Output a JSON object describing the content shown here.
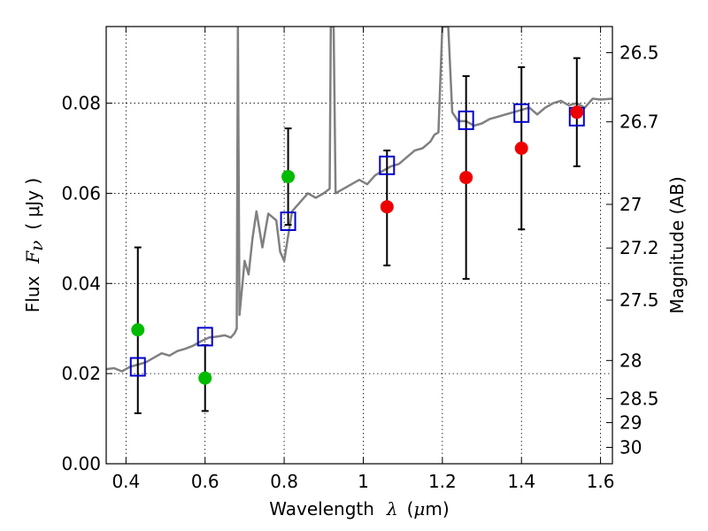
{
  "chart_data": {
    "type": "scatter",
    "title": "",
    "xlabel": {
      "prefix": "Wavelength",
      "symbol": "λ",
      "unit_open": "(",
      "unit_mu": "μ",
      "unit_rest": "m)"
    },
    "ylabel": {
      "prefix": "Flux",
      "symbol_main": "F",
      "symbol_sub": "ν",
      "unit": "( μJy )"
    },
    "y2label": "Magnitude (AB)",
    "xlim": [
      0.35,
      1.63
    ],
    "ylim": [
      0.0,
      0.097
    ],
    "x_ticks": [
      {
        "value": 0.4,
        "label": "0.4"
      },
      {
        "value": 0.6,
        "label": "0.6"
      },
      {
        "value": 0.8,
        "label": "0.8"
      },
      {
        "value": 1.0,
        "label": "1"
      },
      {
        "value": 1.2,
        "label": "1.2"
      },
      {
        "value": 1.4,
        "label": "1.4"
      },
      {
        "value": 1.6,
        "label": "1.6"
      }
    ],
    "y_ticks": [
      {
        "value": 0.0,
        "label": "0.00"
      },
      {
        "value": 0.02,
        "label": "0.02"
      },
      {
        "value": 0.04,
        "label": "0.04"
      },
      {
        "value": 0.06,
        "label": "0.06"
      },
      {
        "value": 0.08,
        "label": "0.08"
      }
    ],
    "mag_ticks": [
      {
        "value": 26.5,
        "label": "26.5"
      },
      {
        "value": 26.7,
        "label": "26.7"
      },
      {
        "value": 27.0,
        "label": "27"
      },
      {
        "value": 27.2,
        "label": "27.2"
      },
      {
        "value": 27.5,
        "label": "27.5"
      },
      {
        "value": 28.0,
        "label": "28"
      },
      {
        "value": 28.5,
        "label": "28.5"
      },
      {
        "value": 29.0,
        "label": "29"
      },
      {
        "value": 30.0,
        "label": "30"
      }
    ],
    "grid": true,
    "colors": {
      "spectrum": "#808080",
      "model": "#0000cc",
      "green": "#00bb00",
      "red": "#ee0000",
      "error": "#000000"
    },
    "spectrum": [
      [
        0.35,
        0.021
      ],
      [
        0.37,
        0.0212
      ],
      [
        0.39,
        0.0205
      ],
      [
        0.41,
        0.0215
      ],
      [
        0.43,
        0.022
      ],
      [
        0.45,
        0.0225
      ],
      [
        0.47,
        0.0235
      ],
      [
        0.49,
        0.0245
      ],
      [
        0.51,
        0.024
      ],
      [
        0.53,
        0.025
      ],
      [
        0.55,
        0.0255
      ],
      [
        0.57,
        0.0262
      ],
      [
        0.59,
        0.0272
      ],
      [
        0.61,
        0.028
      ],
      [
        0.63,
        0.0282
      ],
      [
        0.65,
        0.0285
      ],
      [
        0.665,
        0.028
      ],
      [
        0.675,
        0.029
      ],
      [
        0.68,
        0.03
      ],
      [
        0.683,
        0.097
      ],
      [
        0.687,
        0.033
      ],
      [
        0.7,
        0.045
      ],
      [
        0.71,
        0.042
      ],
      [
        0.72,
        0.05
      ],
      [
        0.73,
        0.056
      ],
      [
        0.745,
        0.048
      ],
      [
        0.76,
        0.0555
      ],
      [
        0.78,
        0.054
      ],
      [
        0.79,
        0.047
      ],
      [
        0.8,
        0.045
      ],
      [
        0.82,
        0.056
      ],
      [
        0.84,
        0.058
      ],
      [
        0.86,
        0.06
      ],
      [
        0.88,
        0.059
      ],
      [
        0.9,
        0.06
      ],
      [
        0.915,
        0.061
      ],
      [
        0.918,
        0.097
      ],
      [
        0.925,
        0.097
      ],
      [
        0.93,
        0.06
      ],
      [
        0.95,
        0.061
      ],
      [
        0.97,
        0.062
      ],
      [
        0.99,
        0.063
      ],
      [
        1.01,
        0.062
      ],
      [
        1.03,
        0.064
      ],
      [
        1.05,
        0.065
      ],
      [
        1.07,
        0.066
      ],
      [
        1.09,
        0.0665
      ],
      [
        1.11,
        0.068
      ],
      [
        1.13,
        0.0695
      ],
      [
        1.15,
        0.07
      ],
      [
        1.17,
        0.0715
      ],
      [
        1.18,
        0.073
      ],
      [
        1.19,
        0.0735
      ],
      [
        1.2,
        0.097
      ],
      [
        1.215,
        0.097
      ],
      [
        1.225,
        0.078
      ],
      [
        1.24,
        0.076
      ],
      [
        1.26,
        0.076
      ],
      [
        1.28,
        0.075
      ],
      [
        1.3,
        0.0755
      ],
      [
        1.32,
        0.0765
      ],
      [
        1.34,
        0.077
      ],
      [
        1.36,
        0.0775
      ],
      [
        1.38,
        0.078
      ],
      [
        1.4,
        0.0785
      ],
      [
        1.42,
        0.079
      ],
      [
        1.44,
        0.0775
      ],
      [
        1.46,
        0.079
      ],
      [
        1.48,
        0.08
      ],
      [
        1.5,
        0.0805
      ],
      [
        1.52,
        0.0795
      ],
      [
        1.54,
        0.08
      ],
      [
        1.56,
        0.079
      ],
      [
        1.58,
        0.081
      ],
      [
        1.6,
        0.0808
      ],
      [
        1.63,
        0.081
      ]
    ],
    "model_points": [
      {
        "x": 0.43,
        "y": 0.0215
      },
      {
        "x": 0.6,
        "y": 0.0282
      },
      {
        "x": 0.81,
        "y": 0.0538
      },
      {
        "x": 1.06,
        "y": 0.0662
      },
      {
        "x": 1.26,
        "y": 0.0762
      },
      {
        "x": 1.4,
        "y": 0.0778
      },
      {
        "x": 1.54,
        "y": 0.077
      }
    ],
    "measured_points": [
      {
        "x": 0.43,
        "y": 0.0297,
        "yerr_low": 0.0112,
        "yerr_high": 0.048,
        "color": "green"
      },
      {
        "x": 0.6,
        "y": 0.019,
        "yerr_low": 0.0117,
        "yerr_high": 0.0263,
        "color": "green"
      },
      {
        "x": 0.81,
        "y": 0.0637,
        "yerr_low": 0.053,
        "yerr_high": 0.0744,
        "color": "green"
      },
      {
        "x": 1.06,
        "y": 0.057,
        "yerr_low": 0.044,
        "yerr_high": 0.0695,
        "color": "red"
      },
      {
        "x": 1.26,
        "y": 0.0635,
        "yerr_low": 0.041,
        "yerr_high": 0.086,
        "color": "red"
      },
      {
        "x": 1.4,
        "y": 0.07,
        "yerr_low": 0.052,
        "yerr_high": 0.088,
        "color": "red"
      },
      {
        "x": 1.54,
        "y": 0.078,
        "yerr_low": 0.066,
        "yerr_high": 0.09,
        "color": "red"
      }
    ]
  }
}
